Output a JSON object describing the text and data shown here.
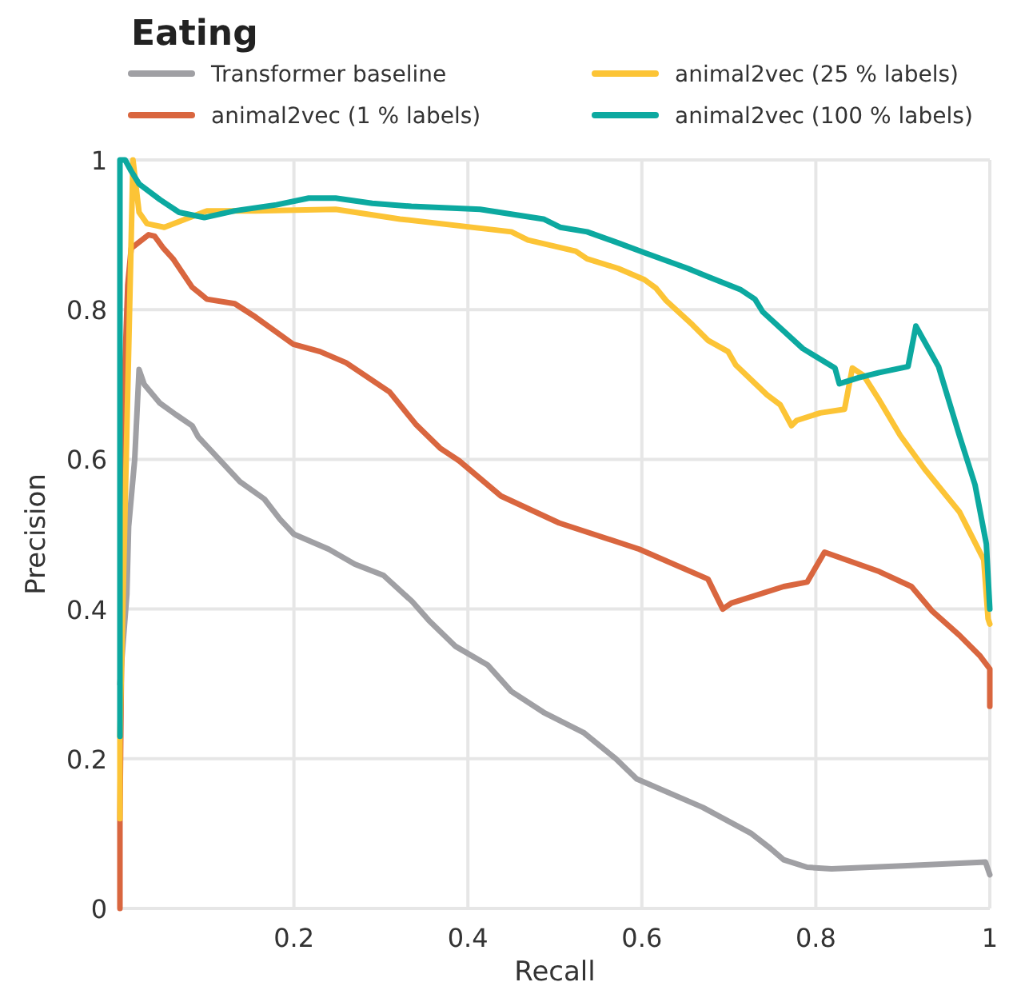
{
  "chart_data": {
    "type": "line",
    "title": "Eating",
    "xlabel": "Recall",
    "ylabel": "Precision",
    "xlim": [
      0,
      1
    ],
    "ylim": [
      0,
      1
    ],
    "xticks": [
      0.2,
      0.4,
      0.6,
      0.8,
      1
    ],
    "yticks": [
      0,
      0.2,
      0.4,
      0.6,
      0.8,
      1
    ],
    "grid": true,
    "legend": "top",
    "marker": "none",
    "line_style": "solid",
    "series": [
      {
        "name": "Transformer baseline",
        "color": "#a0a0a4",
        "x": [
          0,
          0.008,
          0.01,
          0.017,
          0.022,
          0.028,
          0.046,
          0.064,
          0.083,
          0.09,
          0.11,
          0.138,
          0.166,
          0.184,
          0.2,
          0.24,
          0.27,
          0.303,
          0.336,
          0.355,
          0.386,
          0.423,
          0.45,
          0.487,
          0.533,
          0.57,
          0.594,
          0.67,
          0.726,
          0.748,
          0.763,
          0.79,
          0.818,
          0.9,
          0.995,
          1
        ],
        "values": [
          0.3,
          0.42,
          0.51,
          0.6,
          0.72,
          0.7,
          0.675,
          0.66,
          0.645,
          0.63,
          0.605,
          0.57,
          0.547,
          0.52,
          0.5,
          0.48,
          0.46,
          0.445,
          0.41,
          0.385,
          0.35,
          0.325,
          0.29,
          0.262,
          0.235,
          0.2,
          0.173,
          0.135,
          0.1,
          0.08,
          0.065,
          0.055,
          0.053,
          0.057,
          0.062,
          0.045
        ]
      },
      {
        "name": "animal2vec (1 % labels)",
        "color": "#d9663f",
        "x": [
          0,
          0,
          0.005,
          0.009,
          0.013,
          0.033,
          0.04,
          0.05,
          0.061,
          0.083,
          0.1,
          0.132,
          0.156,
          0.199,
          0.23,
          0.26,
          0.31,
          0.34,
          0.368,
          0.39,
          0.438,
          0.505,
          0.597,
          0.676,
          0.693,
          0.703,
          0.763,
          0.79,
          0.81,
          0.873,
          0.91,
          0.934,
          0.965,
          0.989,
          1,
          1
        ],
        "values": [
          0,
          0.12,
          0.7,
          0.833,
          0.882,
          0.9,
          0.898,
          0.882,
          0.868,
          0.83,
          0.814,
          0.808,
          0.79,
          0.754,
          0.744,
          0.729,
          0.69,
          0.647,
          0.615,
          0.598,
          0.551,
          0.515,
          0.48,
          0.44,
          0.4,
          0.408,
          0.43,
          0.436,
          0.476,
          0.45,
          0.43,
          0.397,
          0.365,
          0.337,
          0.32,
          0.27
        ]
      },
      {
        "name": "animal2vec (25 % labels)",
        "color": "#fcc436",
        "x": [
          0,
          0,
          0.015,
          0.022,
          0.031,
          0.051,
          0.1,
          0.156,
          0.248,
          0.322,
          0.45,
          0.469,
          0.524,
          0.537,
          0.573,
          0.603,
          0.616,
          0.628,
          0.658,
          0.676,
          0.699,
          0.708,
          0.744,
          0.759,
          0.772,
          0.778,
          0.805,
          0.833,
          0.842,
          0.855,
          0.873,
          0.897,
          0.925,
          0.965,
          0.993,
          0.998,
          1
        ],
        "values": [
          0.12,
          0.23,
          1,
          0.93,
          0.915,
          0.91,
          0.932,
          0.932,
          0.934,
          0.921,
          0.904,
          0.893,
          0.878,
          0.868,
          0.855,
          0.84,
          0.829,
          0.812,
          0.78,
          0.759,
          0.744,
          0.726,
          0.686,
          0.673,
          0.645,
          0.652,
          0.662,
          0.667,
          0.722,
          0.712,
          0.679,
          0.632,
          0.587,
          0.53,
          0.466,
          0.387,
          0.38
        ]
      },
      {
        "name": "animal2vec (100 % labels)",
        "color": "#0ca9a0",
        "x": [
          0,
          0,
          0.006,
          0.013,
          0.022,
          0.046,
          0.068,
          0.097,
          0.132,
          0.18,
          0.217,
          0.248,
          0.29,
          0.335,
          0.414,
          0.487,
          0.506,
          0.537,
          0.573,
          0.603,
          0.653,
          0.676,
          0.713,
          0.73,
          0.739,
          0.785,
          0.822,
          0.827,
          0.849,
          0.873,
          0.906,
          0.915,
          0.941,
          0.965,
          0.983,
          0.996,
          1
        ],
        "values": [
          0.23,
          1,
          1,
          0.985,
          0.968,
          0.947,
          0.93,
          0.923,
          0.932,
          0.94,
          0.949,
          0.949,
          0.942,
          0.938,
          0.934,
          0.921,
          0.91,
          0.904,
          0.889,
          0.876,
          0.855,
          0.844,
          0.827,
          0.814,
          0.797,
          0.748,
          0.722,
          0.701,
          0.709,
          0.716,
          0.724,
          0.778,
          0.724,
          0.632,
          0.566,
          0.487,
          0.4
        ]
      }
    ]
  }
}
